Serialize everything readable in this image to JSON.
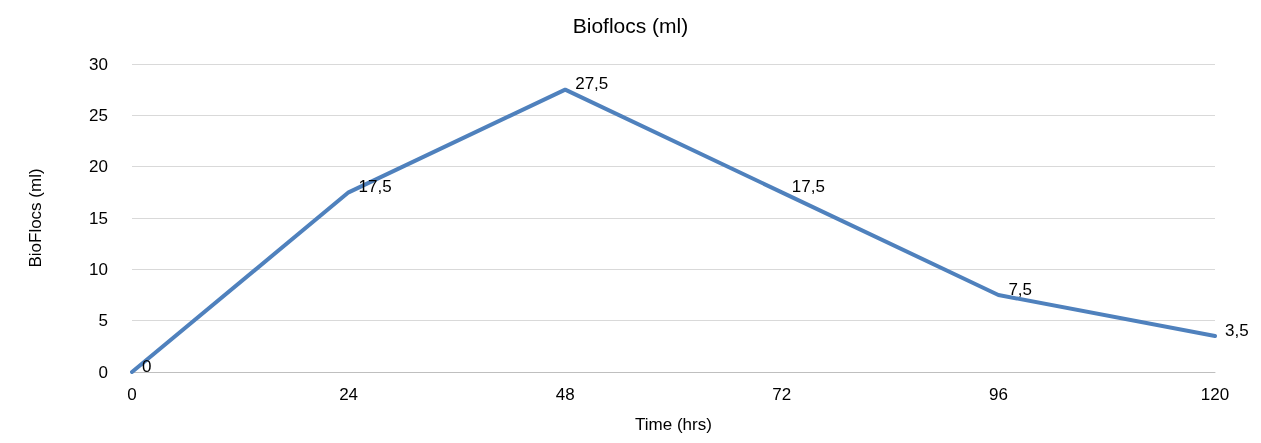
{
  "chart_data": {
    "type": "line",
    "title": "Bioflocs (ml)",
    "xlabel": "Time (hrs)",
    "ylabel": "BioFlocs (ml)",
    "x": [
      0,
      24,
      48,
      72,
      96,
      120
    ],
    "series": [
      {
        "color": "#4f81bd",
        "values": [
          0,
          17.5,
          27.5,
          17.5,
          7.5,
          3.5
        ],
        "value_labels": [
          "0",
          "17,5",
          "27,5",
          "17,5",
          "7,5",
          "3,5"
        ]
      }
    ],
    "xlim": [
      0,
      120
    ],
    "xticks": [
      0,
      24,
      48,
      72,
      96,
      120
    ],
    "ylim": [
      0,
      30
    ],
    "yticks": [
      0,
      5,
      10,
      15,
      20,
      25,
      30
    ],
    "grid": "y",
    "marker": "none",
    "line_style": "solid"
  }
}
